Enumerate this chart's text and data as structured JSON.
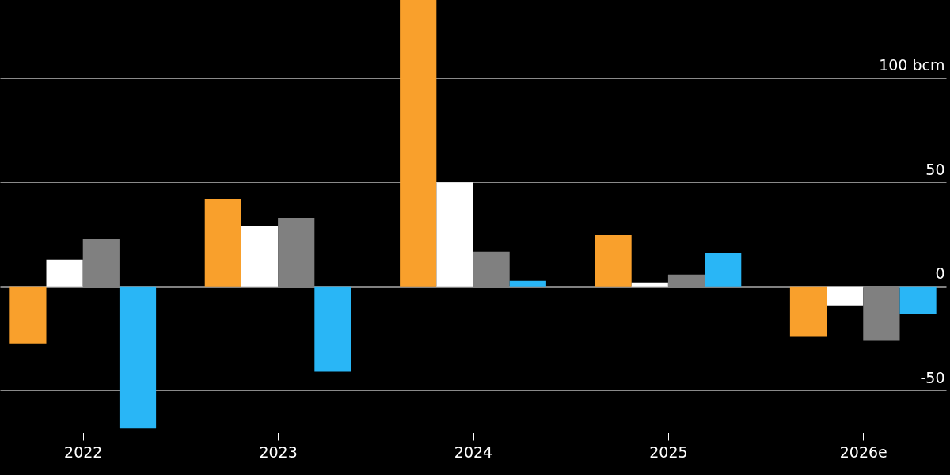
{
  "chart_data": {
    "type": "bar",
    "categories": [
      "2022",
      "2023",
      "2024",
      "2025",
      "2026e"
    ],
    "series": [
      {
        "color": "#f9a02c",
        "values": [
          -27.3,
          41.7,
          137.5,
          24.6,
          -24.2
        ]
      },
      {
        "color": "#ffffff",
        "values": [
          12.9,
          28.8,
          50,
          1.9,
          -9.1
        ]
      },
      {
        "color": "#808080",
        "values": [
          22.7,
          33.0,
          16.7,
          5.7,
          -26.1
        ]
      },
      {
        "color": "#29b6f6",
        "values": [
          -68.2,
          -40.9,
          2.7,
          15.9,
          -13.3
        ]
      }
    ],
    "ylim": [
      -70,
      137.5
    ],
    "yticks": [
      -50,
      0,
      50,
      {
        "value": 100,
        "label": "100 bcm"
      }
    ],
    "grid": "y",
    "legend": false
  }
}
